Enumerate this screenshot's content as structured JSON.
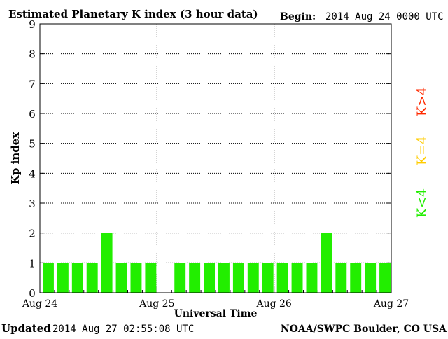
{
  "header": {
    "title": "Estimated Planetary K index (3 hour data)",
    "begin_label": "Begin:",
    "begin_value": "2014 Aug 24 0000 UTC"
  },
  "footer": {
    "updated_label": "Updated",
    "updated_value": "2014 Aug 27 02:55:08 UTC",
    "source": "NOAA/SWPC Boulder, CO USA"
  },
  "legend": [
    {
      "text": "K>4",
      "color": "#ff2a00"
    },
    {
      "text": "K=4",
      "color": "#ffcc00"
    },
    {
      "text": "K<4",
      "color": "#22ee00"
    }
  ],
  "chart_data": {
    "type": "bar",
    "title": "Estimated Planetary K index (3 hour data)",
    "xlabel": "Universal Time",
    "ylabel": "Kp index",
    "ylim": [
      0,
      9
    ],
    "yticks": [
      0,
      1,
      2,
      3,
      4,
      5,
      6,
      7,
      8,
      9
    ],
    "xtick_labels": [
      "Aug 24",
      "Aug 25",
      "Aug 26",
      "Aug 27"
    ],
    "intervals_per_day": 8,
    "grid": true,
    "bar_color": "#22ee00",
    "values": [
      1,
      1,
      1,
      1,
      2,
      1,
      1,
      1,
      0,
      1,
      1,
      1,
      1,
      1,
      1,
      1,
      1,
      1,
      1,
      2,
      1,
      1,
      1,
      1
    ]
  }
}
